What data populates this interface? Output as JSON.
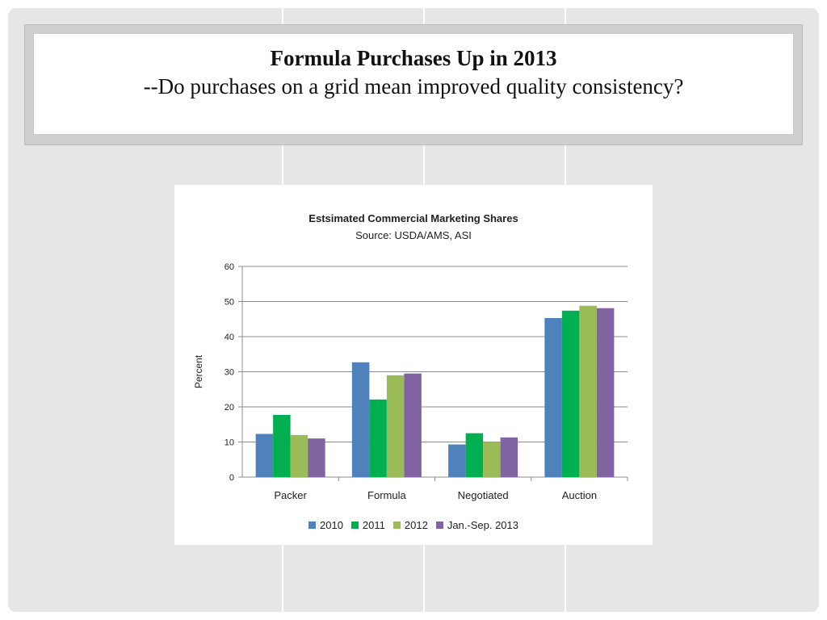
{
  "slide": {
    "title": "Formula Purchases Up in 2013",
    "subtitle": "--Do purchases on a grid mean improved quality consistency?"
  },
  "chart_data": {
    "type": "bar",
    "title": "Estsimated Commercial Marketing Shares",
    "subtitle": "Source: USDA/AMS,  ASI",
    "xlabel": "",
    "ylabel": "Percent",
    "ylim": [
      0,
      60
    ],
    "yticks": [
      0,
      10,
      20,
      30,
      40,
      50,
      60
    ],
    "grid": true,
    "legend_position": "bottom",
    "categories": [
      "Packer",
      "Formula",
      "Negotiated",
      "Auction"
    ],
    "series": [
      {
        "name": "2010",
        "color": "#4f81bd",
        "values": [
          12.3,
          32.7,
          9.3,
          45.3
        ]
      },
      {
        "name": "2011",
        "color": "#00b050",
        "values": [
          17.7,
          22.1,
          12.5,
          47.4
        ]
      },
      {
        "name": "2012",
        "color": "#9bbb59",
        "values": [
          12.0,
          29.0,
          10.0,
          48.8
        ]
      },
      {
        "name": "Jan.-Sep. 2013",
        "color": "#8064a2",
        "values": [
          11.0,
          29.5,
          11.3,
          48.1
        ]
      }
    ]
  }
}
